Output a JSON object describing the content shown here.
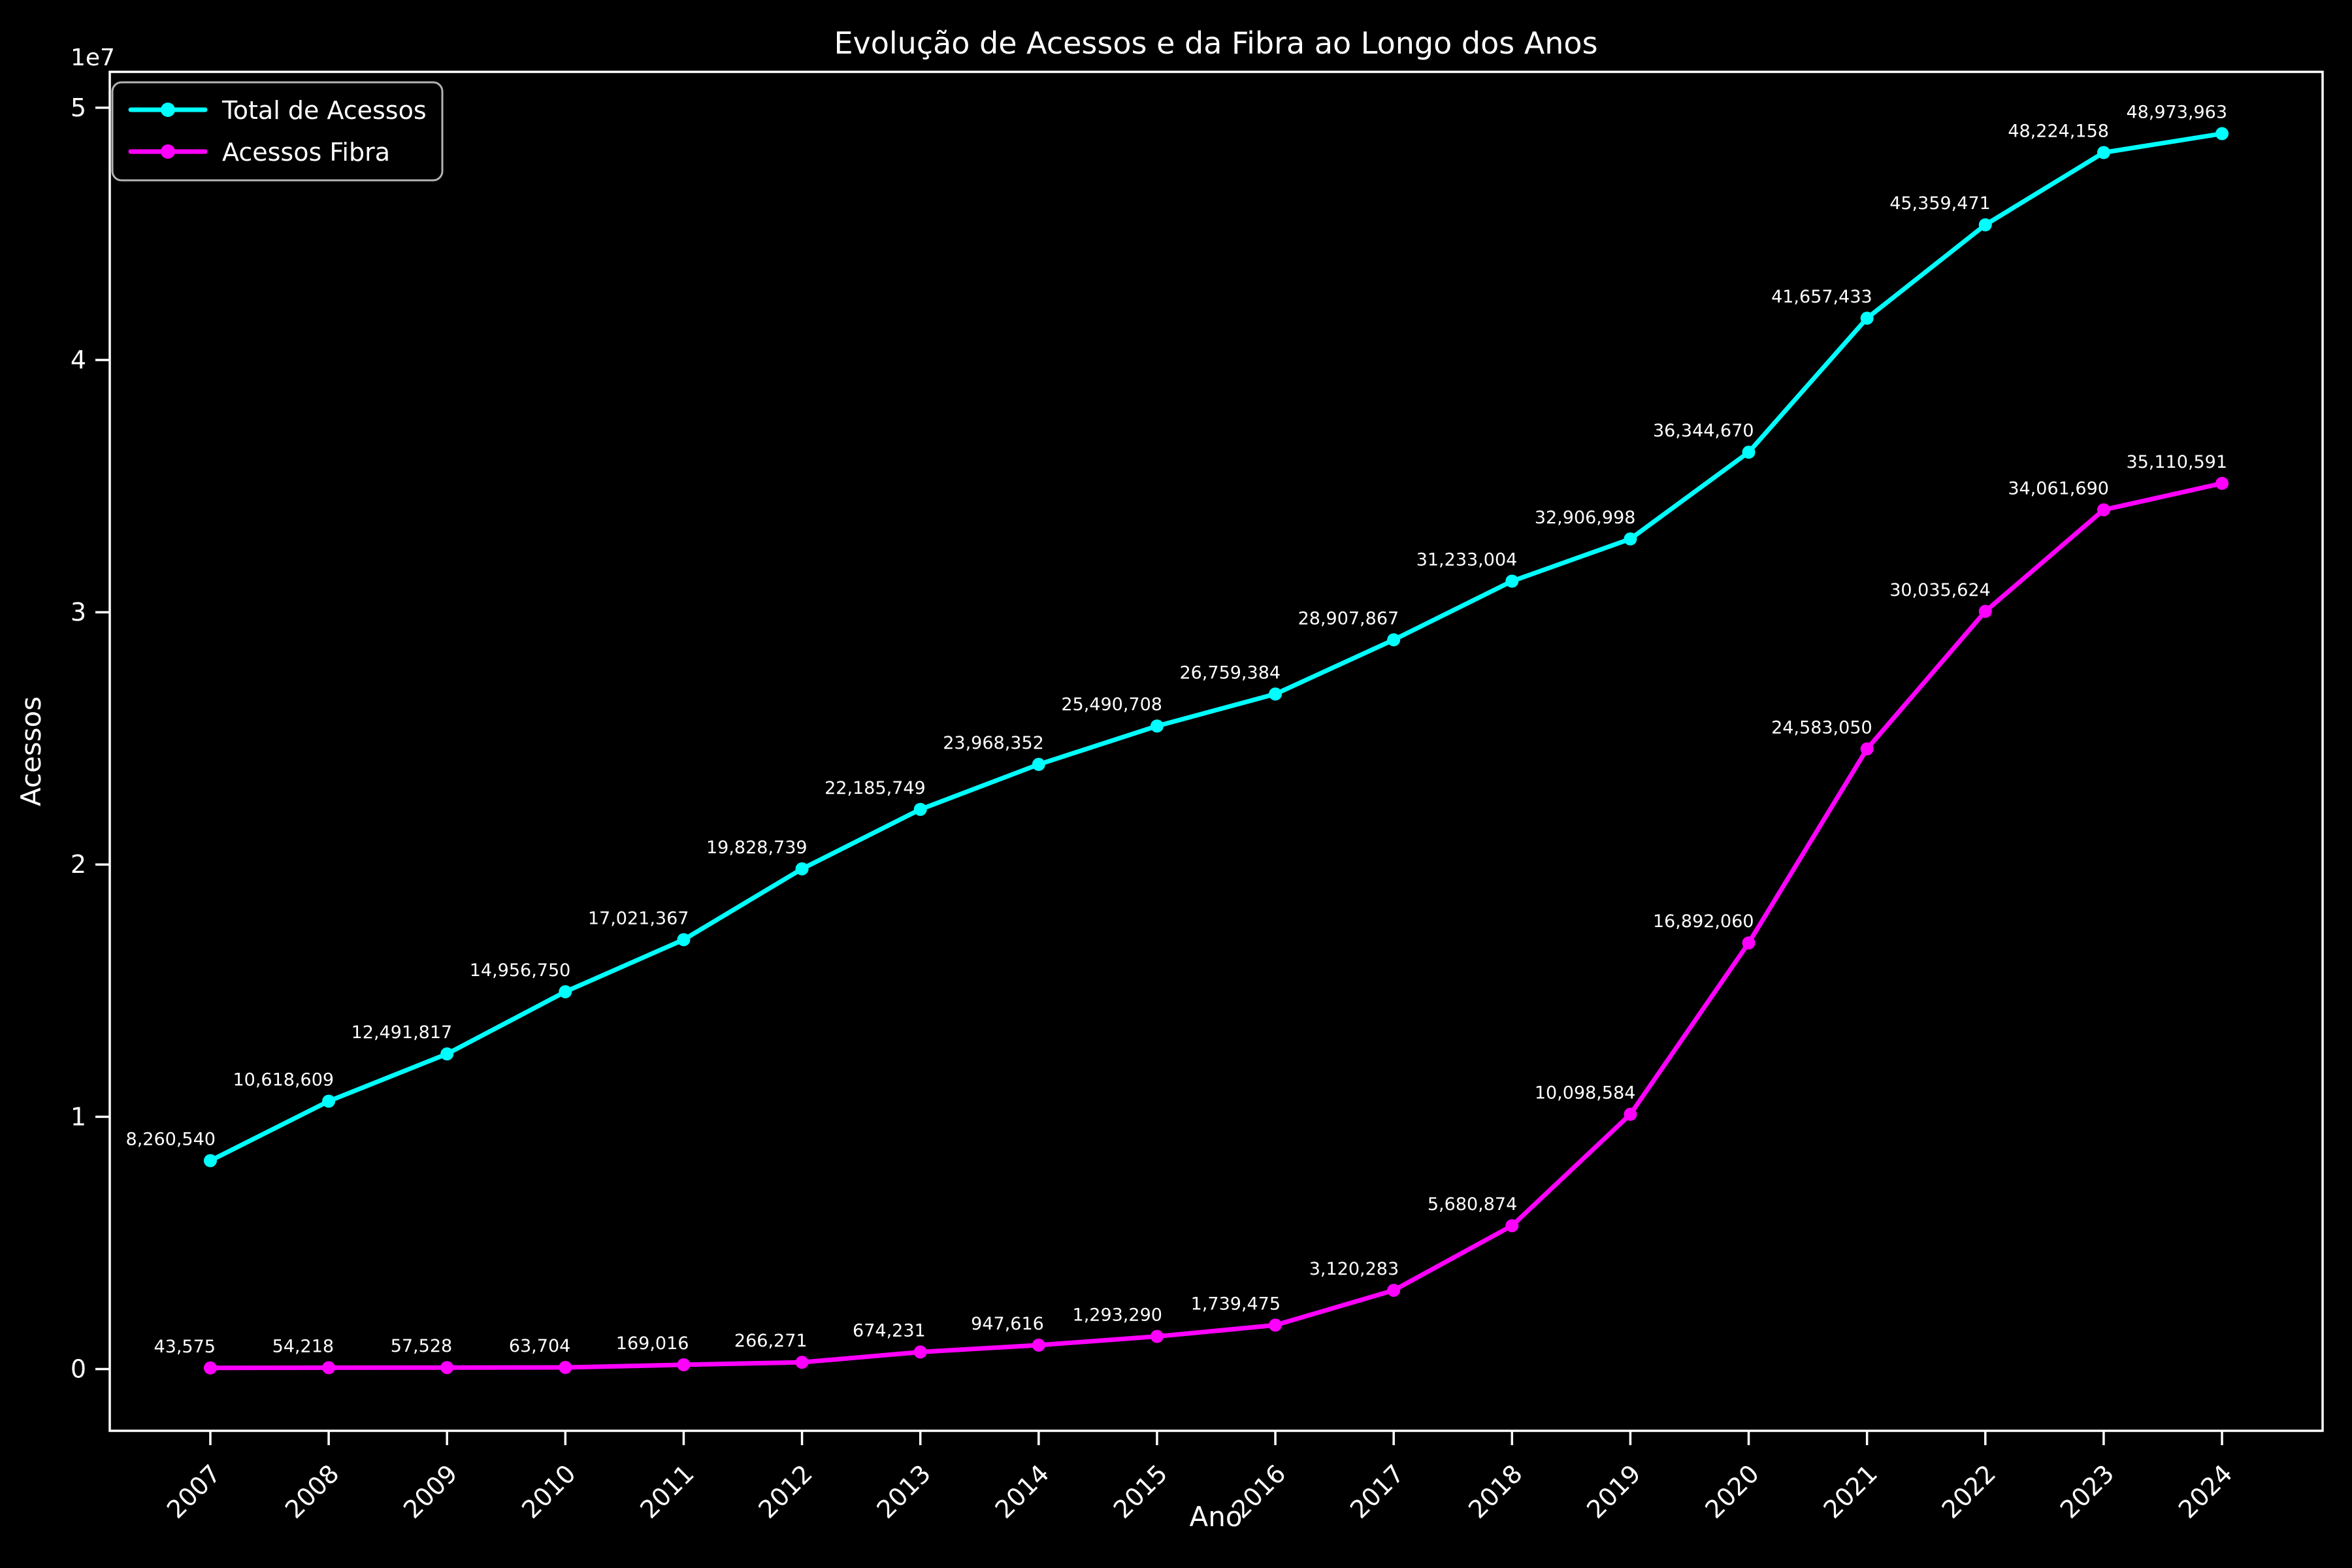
{
  "figure": {
    "background_color": "#000000",
    "text_color": "#ffffff",
    "spine_color": "#ffffff"
  },
  "legend": {
    "position": "upper left",
    "border_color": "#b3b3b3",
    "items": [
      {
        "label": "Total de Acessos",
        "color": "#00ffff"
      },
      {
        "label": "Acessos Fibra",
        "color": "#ff00ff"
      }
    ]
  },
  "chart_data": {
    "type": "line",
    "title": "Evolução de Acessos e da Fibra ao Longo dos Anos",
    "xlabel": "Ano",
    "ylabel": "Acessos",
    "x": [
      2007,
      2008,
      2009,
      2010,
      2011,
      2012,
      2013,
      2014,
      2015,
      2016,
      2017,
      2018,
      2019,
      2020,
      2021,
      2022,
      2023,
      2024
    ],
    "series": [
      {
        "name": "Total de Acessos",
        "color": "#00ffff",
        "values": [
          8260540,
          10618609,
          12491817,
          14956750,
          17021367,
          19828739,
          22185749,
          23968352,
          25490708,
          26759384,
          28907867,
          31233004,
          32906998,
          36344670,
          41657433,
          45359471,
          48224158,
          48973963
        ]
      },
      {
        "name": "Acessos Fibra",
        "color": "#ff00ff",
        "values": [
          43575,
          54218,
          57528,
          63704,
          169016,
          266271,
          674231,
          947616,
          1293290,
          1739475,
          3120283,
          5680874,
          10098584,
          16892060,
          24583050,
          30035624,
          34061690,
          35110591
        ]
      }
    ],
    "xlim": [
      2006.15,
      2024.85
    ],
    "ylim": [
      -2448698,
      51422661
    ],
    "y_ticks_values": [
      0,
      10000000,
      20000000,
      30000000,
      40000000,
      50000000
    ],
    "y_tick_labels": [
      "0",
      "1",
      "2",
      "3",
      "4",
      "5"
    ],
    "y_offset_label": "1e7",
    "x_tick_rotation_deg": 45,
    "grid": false,
    "data_labels": true,
    "marker": "o",
    "legend_position": "upper left"
  }
}
